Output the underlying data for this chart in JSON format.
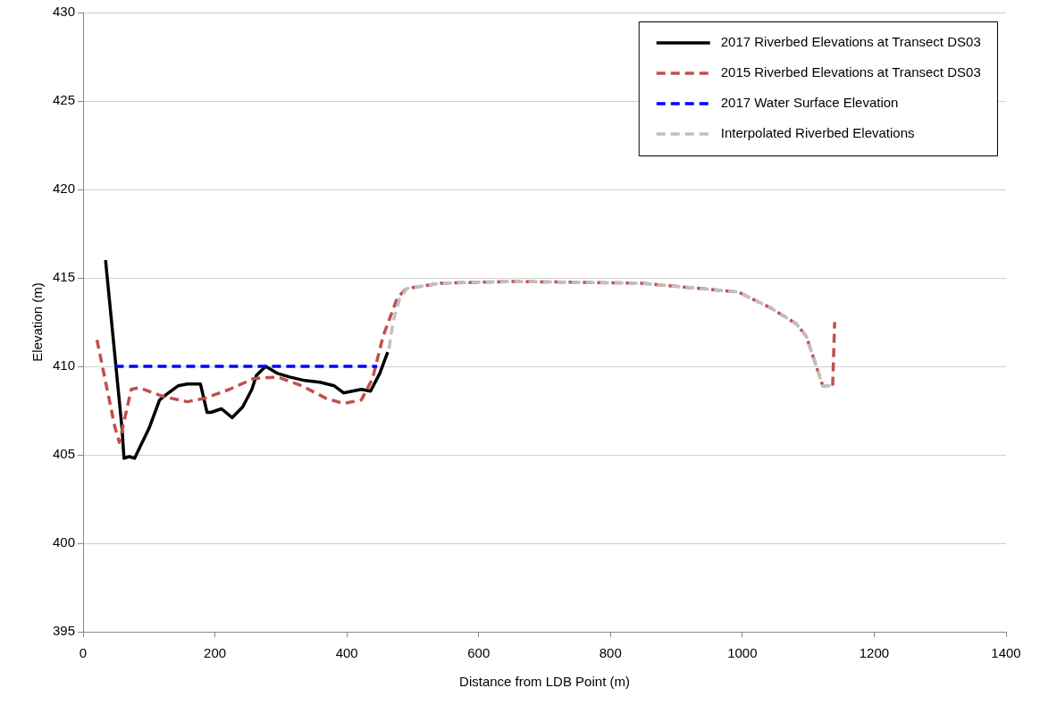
{
  "chart_data": {
    "type": "line",
    "xlabel": "Distance from LDB Point (m)",
    "ylabel": "Elevation (m)",
    "xlim": [
      0,
      1400
    ],
    "xticks": [
      0,
      200,
      400,
      600,
      800,
      1000,
      1200,
      1400
    ],
    "ylim": [
      395,
      430
    ],
    "yticks": [
      395,
      400,
      405,
      410,
      415,
      420,
      425,
      430
    ],
    "grid": "y",
    "legend": "top right",
    "marker": "none",
    "series": [
      {
        "name": "2017 Riverbed Elevations at Transect DS03",
        "color": "#000000",
        "line_style": "solid",
        "x": [
          34,
          59,
          62,
          70,
          78,
          100,
          116,
          126,
          144,
          158,
          178,
          188,
          194,
          210,
          226,
          242,
          256,
          263,
          277,
          295,
          313,
          336,
          359,
          381,
          395,
          422,
          436,
          450,
          462
        ],
        "values": [
          416.0,
          406.5,
          404.8,
          404.9,
          404.8,
          406.5,
          408.1,
          408.4,
          408.9,
          409.0,
          409.0,
          407.4,
          407.4,
          407.6,
          407.1,
          407.7,
          408.7,
          409.5,
          410.0,
          409.6,
          409.4,
          409.2,
          409.1,
          408.9,
          408.5,
          408.7,
          408.6,
          409.6,
          410.8
        ]
      },
      {
        "name": "2015 Riverbed Elevations at Transect DS03",
        "color": "#c0504d",
        "line_style": "dashed",
        "x": [
          21,
          48,
          55,
          73,
          85,
          121,
          158,
          185,
          222,
          258,
          295,
          332,
          368,
          395,
          422,
          439,
          455,
          477,
          491,
          542,
          651,
          847,
          994,
          1043,
          1082,
          1097,
          1122,
          1137,
          1140
        ],
        "values": [
          411.5,
          406.6,
          405.7,
          408.7,
          408.8,
          408.3,
          408.0,
          408.2,
          408.7,
          409.3,
          409.4,
          408.9,
          408.2,
          407.9,
          408.1,
          409.3,
          411.7,
          413.9,
          414.4,
          414.7,
          414.8,
          414.7,
          414.2,
          413.3,
          412.4,
          411.7,
          408.9,
          408.9,
          412.5
        ]
      },
      {
        "name": "2017 Water Surface Elevation",
        "color": "#0000ff",
        "line_style": "dashed",
        "x": [
          48,
          446
        ],
        "values": [
          410,
          410
        ]
      },
      {
        "name": "Interpolated Riverbed Elevations",
        "color": "#c0c0c0",
        "line_style": "dashed",
        "x": [
          464,
          470,
          480,
          491,
          542,
          651,
          847,
          994,
          1043,
          1082,
          1097,
          1122,
          1137
        ],
        "values": [
          411,
          412.5,
          413.8,
          414.4,
          414.7,
          414.8,
          414.7,
          414.2,
          413.3,
          412.4,
          411.7,
          408.9,
          408.9
        ]
      }
    ]
  }
}
